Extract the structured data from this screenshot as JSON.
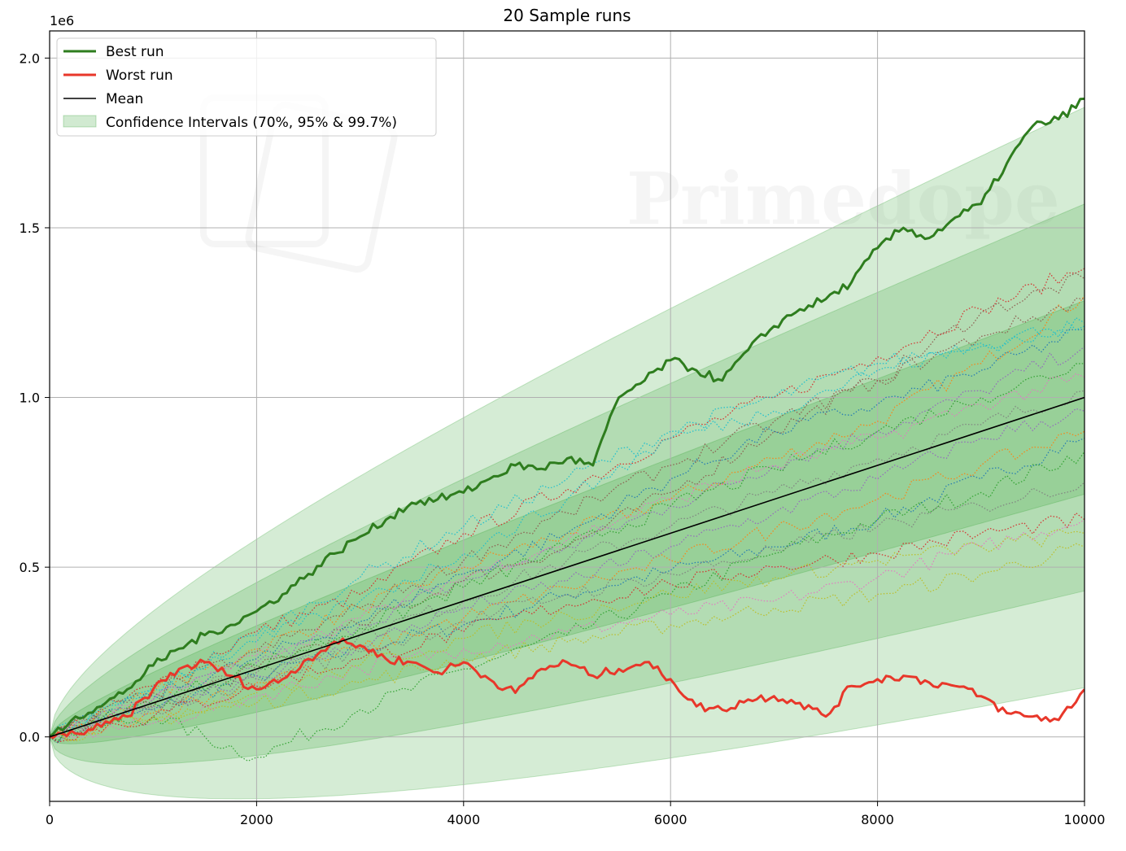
{
  "chart_data": {
    "type": "line",
    "title": "20 Sample runs",
    "xlabel": "",
    "ylabel": "",
    "xlim": [
      0,
      10000
    ],
    "ylim": [
      -190000,
      2080000
    ],
    "y_offset_label": "1e6",
    "x_ticks": [
      0,
      2000,
      4000,
      6000,
      8000,
      10000
    ],
    "x_tick_labels": [
      "0",
      "2000",
      "4000",
      "6000",
      "8000",
      "10000"
    ],
    "y_ticks": [
      0,
      500000,
      1000000,
      1500000,
      2000000
    ],
    "y_tick_labels": [
      "0.0",
      "0.5",
      "1.0",
      "1.5",
      "2.0"
    ],
    "grid": true,
    "legend_position": "top-left",
    "legend": {
      "best": "Best run",
      "worst": "Worst run",
      "mean": "Mean",
      "ci": "Confidence Intervals (70%, 95% & 99.7%)"
    },
    "mean_slope_per_x": 100,
    "confidence_bands": [
      {
        "sigma": 1,
        "upper_at_10000": 1285000,
        "lower_at_10000": 715000
      },
      {
        "sigma": 2,
        "upper_at_10000": 1570000,
        "lower_at_10000": 430000
      },
      {
        "sigma": 3,
        "upper_at_10000": 1855000,
        "lower_at_10000": 145000
      }
    ],
    "series": [
      {
        "name": "Best run",
        "color": "#2e7d1e",
        "style": "solid",
        "x": [
          0,
          250,
          500,
          750,
          1000,
          1250,
          1500,
          1750,
          2000,
          2250,
          2500,
          2750,
          3000,
          3250,
          3500,
          3750,
          4000,
          4250,
          4500,
          4750,
          5000,
          5250,
          5500,
          5750,
          6000,
          6250,
          6500,
          6750,
          7000,
          7250,
          7500,
          7750,
          8000,
          8250,
          8500,
          8750,
          9000,
          9250,
          9500,
          9750,
          10000
        ],
        "y": [
          0,
          60000,
          90000,
          140000,
          210000,
          260000,
          300000,
          330000,
          370000,
          420000,
          480000,
          540000,
          590000,
          640000,
          690000,
          700000,
          720000,
          760000,
          800000,
          790000,
          820000,
          800000,
          1000000,
          1050000,
          1110000,
          1080000,
          1050000,
          1140000,
          1210000,
          1260000,
          1290000,
          1340000,
          1440000,
          1500000,
          1470000,
          1530000,
          1570000,
          1690000,
          1800000,
          1820000,
          1880000
        ]
      },
      {
        "name": "Worst run",
        "color": "#e8372a",
        "style": "solid",
        "x": [
          0,
          250,
          500,
          750,
          1000,
          1250,
          1500,
          1750,
          2000,
          2250,
          2500,
          2750,
          3000,
          3250,
          3500,
          3750,
          4000,
          4250,
          4500,
          4750,
          5000,
          5250,
          5500,
          5750,
          6000,
          6250,
          6500,
          6750,
          7000,
          7250,
          7500,
          7750,
          8000,
          8250,
          8500,
          8750,
          9000,
          9250,
          9500,
          9750,
          10000
        ],
        "y": [
          0,
          10000,
          30000,
          60000,
          140000,
          200000,
          220000,
          180000,
          140000,
          170000,
          230000,
          280000,
          270000,
          230000,
          220000,
          190000,
          220000,
          170000,
          130000,
          200000,
          220000,
          180000,
          200000,
          220000,
          170000,
          90000,
          80000,
          110000,
          120000,
          100000,
          60000,
          150000,
          170000,
          180000,
          160000,
          150000,
          120000,
          70000,
          60000,
          50000,
          140000
        ]
      },
      {
        "name": "Mean",
        "color": "#000000",
        "style": "solid",
        "x": [
          0,
          10000
        ],
        "y": [
          0,
          1000000
        ]
      }
    ],
    "sample_runs": [
      {
        "color": "#1f77b4",
        "x": [
          0,
          1000,
          2000,
          3000,
          4000,
          5000,
          6000,
          7000,
          8000,
          9000,
          10000
        ],
        "y": [
          0,
          80000,
          180000,
          260000,
          330000,
          420000,
          490000,
          560000,
          640000,
          760000,
          880000
        ]
      },
      {
        "color": "#ff7f0e",
        "x": [
          0,
          1000,
          2000,
          3000,
          4000,
          5000,
          6000,
          7000,
          8000,
          9000,
          10000
        ],
        "y": [
          0,
          130000,
          260000,
          380000,
          500000,
          600000,
          700000,
          820000,
          930000,
          1100000,
          1300000
        ]
      },
      {
        "color": "#2ca02c",
        "x": [
          0,
          1000,
          2000,
          3000,
          4000,
          5000,
          6000,
          7000,
          8000,
          9000,
          10000
        ],
        "y": [
          0,
          60000,
          -60000,
          80000,
          200000,
          300000,
          420000,
          540000,
          640000,
          720000,
          840000
        ]
      },
      {
        "color": "#d62728",
        "x": [
          0,
          1000,
          2000,
          3000,
          4000,
          5000,
          6000,
          7000,
          8000,
          9000,
          10000
        ],
        "y": [
          0,
          150000,
          310000,
          420000,
          600000,
          730000,
          880000,
          1000000,
          1120000,
          1260000,
          1380000
        ]
      },
      {
        "color": "#9467bd",
        "x": [
          0,
          1000,
          2000,
          3000,
          4000,
          5000,
          6000,
          7000,
          8000,
          9000,
          10000
        ],
        "y": [
          0,
          110000,
          220000,
          330000,
          460000,
          560000,
          680000,
          800000,
          900000,
          1020000,
          1150000
        ]
      },
      {
        "color": "#8c564b",
        "x": [
          0,
          1000,
          2000,
          3000,
          4000,
          5000,
          6000,
          7000,
          8000,
          9000,
          10000
        ],
        "y": [
          0,
          90000,
          200000,
          330000,
          460000,
          560000,
          720000,
          900000,
          1050000,
          1250000,
          1350000
        ]
      },
      {
        "color": "#e377c2",
        "x": [
          0,
          1000,
          2000,
          3000,
          4000,
          5000,
          6000,
          7000,
          8000,
          9000,
          10000
        ],
        "y": [
          0,
          40000,
          120000,
          200000,
          260000,
          310000,
          360000,
          400000,
          470000,
          560000,
          640000
        ]
      },
      {
        "color": "#7f7f7f",
        "x": [
          0,
          1000,
          2000,
          3000,
          4000,
          5000,
          6000,
          7000,
          8000,
          9000,
          10000
        ],
        "y": [
          0,
          100000,
          190000,
          300000,
          400000,
          520000,
          620000,
          720000,
          820000,
          920000,
          1020000
        ]
      },
      {
        "color": "#bcbd22",
        "x": [
          0,
          1000,
          2000,
          3000,
          4000,
          5000,
          6000,
          7000,
          8000,
          9000,
          10000
        ],
        "y": [
          0,
          50000,
          100000,
          160000,
          230000,
          280000,
          330000,
          380000,
          420000,
          480000,
          560000
        ]
      },
      {
        "color": "#17becf",
        "x": [
          0,
          1000,
          2000,
          3000,
          4000,
          5000,
          6000,
          7000,
          8000,
          9000,
          10000
        ],
        "y": [
          0,
          140000,
          300000,
          470000,
          620000,
          760000,
          900000,
          1000000,
          1100000,
          1160000,
          1220000
        ]
      },
      {
        "color": "#1f77b4",
        "x": [
          0,
          1000,
          2000,
          3000,
          4000,
          5000,
          6000,
          7000,
          8000,
          9000,
          10000
        ],
        "y": [
          0,
          120000,
          230000,
          340000,
          480000,
          600000,
          760000,
          900000,
          980000,
          1080000,
          1200000
        ]
      },
      {
        "color": "#ff7f0e",
        "x": [
          0,
          1000,
          2000,
          3000,
          4000,
          5000,
          6000,
          7000,
          8000,
          9000,
          10000
        ],
        "y": [
          0,
          70000,
          160000,
          260000,
          350000,
          440000,
          520000,
          610000,
          700000,
          800000,
          900000
        ]
      },
      {
        "color": "#2ca02c",
        "x": [
          0,
          1000,
          2000,
          3000,
          4000,
          5000,
          6000,
          7000,
          8000,
          9000,
          10000
        ],
        "y": [
          0,
          100000,
          210000,
          320000,
          440000,
          560000,
          680000,
          790000,
          900000,
          1000000,
          1100000
        ]
      },
      {
        "color": "#d62728",
        "x": [
          0,
          1000,
          2000,
          3000,
          4000,
          5000,
          6000,
          7000,
          8000,
          9000,
          10000
        ],
        "y": [
          0,
          60000,
          150000,
          230000,
          310000,
          390000,
          450000,
          500000,
          540000,
          600000,
          640000
        ]
      },
      {
        "color": "#9467bd",
        "x": [
          0,
          1000,
          2000,
          3000,
          4000,
          5000,
          6000,
          7000,
          8000,
          9000,
          10000
        ],
        "y": [
          0,
          90000,
          180000,
          270000,
          380000,
          460000,
          560000,
          660000,
          760000,
          880000,
          960000
        ]
      },
      {
        "color": "#8c564b",
        "x": [
          0,
          1000,
          2000,
          3000,
          4000,
          5000,
          6000,
          7000,
          8000,
          9000,
          10000
        ],
        "y": [
          0,
          130000,
          250000,
          380000,
          520000,
          660000,
          800000,
          930000,
          1050000,
          1180000,
          1290000
        ]
      },
      {
        "color": "#e377c2",
        "x": [
          0,
          1000,
          2000,
          3000,
          4000,
          5000,
          6000,
          7000,
          8000,
          9000,
          10000
        ],
        "y": [
          0,
          110000,
          240000,
          350000,
          470000,
          580000,
          700000,
          800000,
          880000,
          980000,
          1060000
        ]
      },
      {
        "color": "#7f7f7f",
        "x": [
          0,
          1000,
          2000,
          3000,
          4000,
          5000,
          6000,
          7000,
          8000,
          9000,
          10000
        ],
        "y": [
          0,
          80000,
          170000,
          250000,
          340000,
          420000,
          480000,
          550000,
          620000,
          680000,
          750000
        ]
      },
      {
        "color": "#bcbd22",
        "x": [
          0,
          1000,
          2000,
          3000,
          4000,
          5000,
          6000,
          7000,
          8000,
          9000,
          10000
        ],
        "y": [
          0,
          60000,
          130000,
          210000,
          290000,
          360000,
          420000,
          470000,
          520000,
          560000,
          600000
        ]
      },
      {
        "color": "#17becf",
        "x": [
          0,
          1000,
          2000,
          3000,
          4000,
          5000,
          6000,
          7000,
          8000,
          9000,
          10000
        ],
        "y": [
          0,
          150000,
          280000,
          400000,
          540000,
          700000,
          880000,
          960000,
          1080000,
          1150000,
          1210000
        ]
      }
    ]
  }
}
